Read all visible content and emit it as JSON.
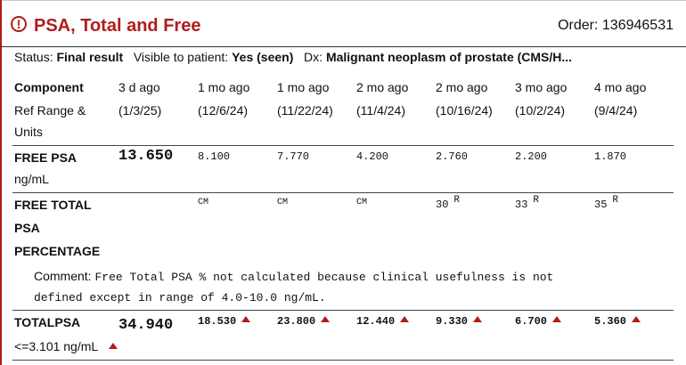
{
  "header": {
    "alert_glyph": "!",
    "title": "PSA, Total and Free",
    "order_label": "Order:",
    "order_number": "136946531",
    "accent_color": "#b11c1c"
  },
  "status": {
    "status_label": "Status:",
    "status_value": "Final result",
    "visible_label": "Visible to patient:",
    "visible_value": "Yes (seen)",
    "dx_label": "Dx:",
    "dx_value": "Malignant neoplasm of prostate (CMS/H..."
  },
  "table": {
    "component_label": "Component",
    "ref_label_1": "Ref Range &",
    "ref_label_2": "Units",
    "columns": [
      {
        "ago": "3 d ago",
        "date": "(1/3/25)"
      },
      {
        "ago": "1 mo ago",
        "date": "(12/6/24)"
      },
      {
        "ago": "1 mo ago",
        "date": "(11/22/24)"
      },
      {
        "ago": "2 mo ago",
        "date": "(11/4/24)"
      },
      {
        "ago": "2 mo ago",
        "date": "(10/16/24)"
      },
      {
        "ago": "3 mo ago",
        "date": "(10/2/24)"
      },
      {
        "ago": "4 mo ago",
        "date": "(9/4/24)"
      }
    ],
    "free_psa": {
      "name": "FREE PSA",
      "unit": "ng/mL",
      "values": [
        "13.650",
        "8.100",
        "7.770",
        "4.200",
        "2.760",
        "2.200",
        "1.870"
      ]
    },
    "free_total": {
      "name_1": "FREE TOTAL",
      "name_2": "PSA",
      "name_3": "PERCENTAGE",
      "values": [
        "",
        "CM",
        "CM",
        "CM",
        "30",
        "33",
        "35"
      ],
      "flag": "R",
      "comment_label": "Comment:",
      "comment_line1": "Free Total PSA % not calculated because clinical usefulness is not",
      "comment_line2": "defined except in range of 4.0-10.0 ng/mL."
    },
    "total_psa": {
      "name": "TOTALPSA",
      "ref_range": "<=3.101 ng/mL",
      "values": [
        "34.940",
        "18.530",
        "23.800",
        "12.440",
        "9.330",
        "6.700",
        "5.360"
      ],
      "flag_icon": "high-flag-icon"
    }
  }
}
